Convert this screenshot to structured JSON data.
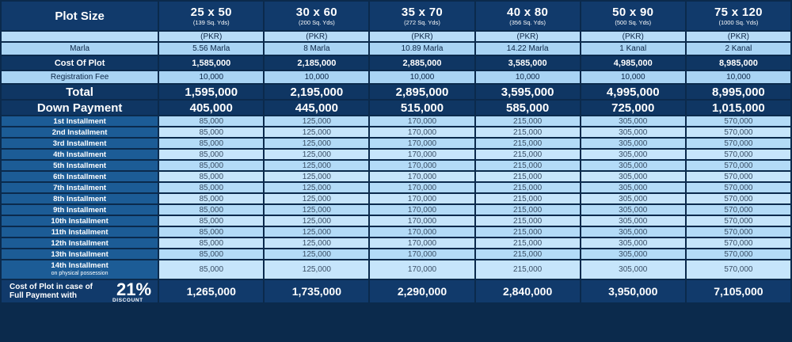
{
  "header": {
    "label": "Plot Size",
    "plots": [
      {
        "size": "25 x 50",
        "sq": "(139 Sq. Yds)"
      },
      {
        "size": "30 x 60",
        "sq": "(200 Sq. Yds)"
      },
      {
        "size": "35 x 70",
        "sq": "(272 Sq. Yds)"
      },
      {
        "size": "40 x 80",
        "sq": "(356 Sq. Yds)"
      },
      {
        "size": "50 x 90",
        "sq": "(500 Sq. Yds)"
      },
      {
        "size": "75 x 120",
        "sq": "(1000 Sq. Yds)"
      }
    ]
  },
  "currency": "(PKR)",
  "marla": {
    "label": "Marla",
    "values": [
      "5.56 Marla",
      "8 Marla",
      "10.89 Marla",
      "14.22 Marla",
      "1 Kanal",
      "2 Kanal"
    ]
  },
  "cost": {
    "label": "Cost Of Plot",
    "values": [
      "1,585,000",
      "2,185,000",
      "2,885,000",
      "3,585,000",
      "4,985,000",
      "8,985,000"
    ]
  },
  "registration": {
    "label": "Registration Fee",
    "values": [
      "10,000",
      "10,000",
      "10,000",
      "10,000",
      "10,000",
      "10,000"
    ]
  },
  "total": {
    "label": "Total",
    "values": [
      "1,595,000",
      "2,195,000",
      "2,895,000",
      "3,595,000",
      "4,995,000",
      "8,995,000"
    ]
  },
  "down": {
    "label": "Down Payment",
    "values": [
      "405,000",
      "445,000",
      "515,000",
      "585,000",
      "725,000",
      "1,015,000"
    ]
  },
  "installments": {
    "labels": [
      "1st Installment",
      "2nd Installment",
      "3rd Installment",
      "4th Installment",
      "5th Installment",
      "6th Installment",
      "7th Installment",
      "8th Installment",
      "9th Installment",
      "10th Installment",
      "11th Installment",
      "12th Installment",
      "13th Installment",
      "14th Installment"
    ],
    "last_note": "on physical possession",
    "values": [
      "85,000",
      "125,000",
      "170,000",
      "215,000",
      "305,000",
      "570,000"
    ]
  },
  "final": {
    "line1": "Cost of Plot in case of",
    "line2": "Full Payment with",
    "discount": "21%",
    "discount_word": "DISCOUNT",
    "values": [
      "1,265,000",
      "1,735,000",
      "2,290,000",
      "2,840,000",
      "3,950,000",
      "7,105,000"
    ]
  }
}
